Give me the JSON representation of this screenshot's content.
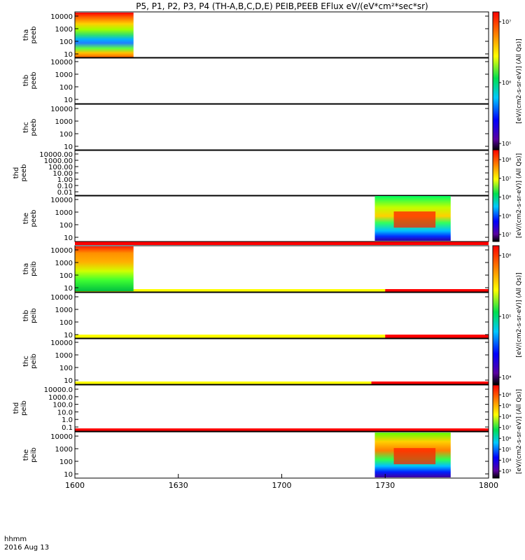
{
  "title": "P5, P1, P2, P3, P4 (TH-A,B,C,D,E) PEIB,PEEB EFlux eV/(eV*cm²*sec*sr)",
  "bottom_labels": {
    "hhmm": "hhmm",
    "date": "2016 Aug 13"
  },
  "colors": {
    "red": "#ff0000",
    "yellow": "#ffff00",
    "frame": "#000000"
  },
  "chart_data": {
    "type": "heatmap",
    "x_ticks": [
      "1600",
      "1630",
      "1700",
      "1730",
      "1800"
    ],
    "x_range": [
      "16:00",
      "18:00"
    ],
    "colorbars": [
      {
        "panels": [
          0,
          1,
          2
        ],
        "ticks": [
          "10⁷",
          "10⁶",
          "10⁵"
        ],
        "label": "[eV/(cm2-s-sr-eV)] (All Qs)]"
      },
      {
        "panels": [
          3,
          4
        ],
        "ticks": [
          "10⁸",
          "10⁷",
          "10⁶",
          "10⁵",
          "10⁷"
        ],
        "label": "[eV/(cm2-s-sr-eV)] (All Qs)]"
      },
      {
        "panels": [
          5,
          6,
          7
        ],
        "ticks": [
          "10⁶",
          "10⁵",
          "10⁴"
        ],
        "label": "[eV/(cm2-s-sr-eV)] (All Qs)]"
      },
      {
        "panels": [
          8,
          9
        ],
        "ticks": [
          "10⁶",
          "10⁵",
          "10⁴",
          "10⁷",
          "10⁶",
          "10⁵",
          "10⁴",
          "10³"
        ],
        "label": "[eV/(cm2-s-sr-eV)] (All Qs)]"
      }
    ],
    "panels": [
      {
        "probe": "tha",
        "product": "peeb",
        "y_ticks": [
          "10000",
          "1000",
          "100",
          "10"
        ],
        "data_intervals": [
          [
            "16:00",
            "16:17"
          ]
        ]
      },
      {
        "probe": "thb",
        "product": "peeb",
        "y_ticks": [
          "10000",
          "1000",
          "100",
          "10"
        ],
        "data_intervals": []
      },
      {
        "probe": "thc",
        "product": "peeb",
        "y_ticks": [
          "10000",
          "1000",
          "100",
          "10"
        ],
        "data_intervals": []
      },
      {
        "probe": "thd",
        "product": "peeb",
        "y_ticks": [
          "10000.00",
          "1000.00",
          "100.00",
          "10.00",
          "1.00",
          "0.10",
          "0.01"
        ],
        "data_intervals": []
      },
      {
        "probe": "the",
        "product": "peeb",
        "y_ticks": [
          "10000",
          "1000",
          "100",
          "10"
        ],
        "data_intervals": [
          [
            "17:27",
            "17:49"
          ]
        ]
      },
      {
        "probe": "tha",
        "product": "peib",
        "y_ticks": [
          "10000",
          "1000",
          "100",
          "10"
        ],
        "data_intervals": [
          [
            "16:00",
            "16:17"
          ]
        ]
      },
      {
        "probe": "thb",
        "product": "peib",
        "y_ticks": [
          "10000",
          "1000",
          "100",
          "10"
        ],
        "data_intervals": []
      },
      {
        "probe": "thc",
        "product": "peib",
        "y_ticks": [
          "10000",
          "1000",
          "100",
          "10"
        ],
        "data_intervals": []
      },
      {
        "probe": "thd",
        "product": "peib",
        "y_ticks": [
          "10000.0",
          "1000.0",
          "100.0",
          "10.0",
          "1.0",
          "0.1"
        ],
        "data_intervals": []
      },
      {
        "probe": "the",
        "product": "peib",
        "y_ticks": [
          "10000",
          "1000",
          "100",
          "10"
        ],
        "data_intervals": [
          [
            "17:27",
            "17:49"
          ]
        ]
      }
    ],
    "status_bars": [
      {
        "above_panel": 5,
        "segments": [
          {
            "start": "16:00",
            "end": "18:00",
            "color": "red"
          }
        ]
      },
      {
        "above_panel": 6,
        "segments": [
          {
            "start": "16:00",
            "end": "17:30",
            "color": "yellow"
          },
          {
            "start": "17:30",
            "end": "18:00",
            "color": "red"
          }
        ]
      },
      {
        "above_panel": 7,
        "segments": [
          {
            "start": "16:00",
            "end": "17:30",
            "color": "yellow"
          },
          {
            "start": "17:30",
            "end": "18:00",
            "color": "red"
          }
        ]
      },
      {
        "above_panel": 8,
        "segments": [
          {
            "start": "16:00",
            "end": "17:26",
            "color": "yellow"
          },
          {
            "start": "17:26",
            "end": "18:00",
            "color": "red"
          }
        ]
      },
      {
        "above_panel": 9,
        "segments": [
          {
            "start": "16:00",
            "end": "18:00",
            "color": "red"
          }
        ]
      }
    ]
  }
}
